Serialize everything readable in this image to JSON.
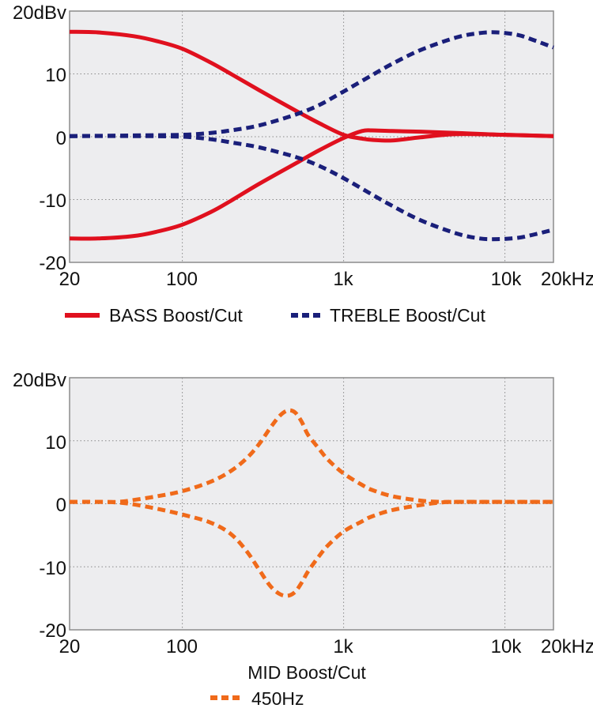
{
  "chart_data": [
    {
      "type": "line",
      "title": "",
      "xlabel": "",
      "ylabel": "dBv",
      "xscale": "log",
      "xlim": [
        20,
        20000
      ],
      "ylim": [
        -20,
        20
      ],
      "grid": true,
      "x_tick_labels": [
        "20",
        "100",
        "1k",
        "10k",
        "20kHz"
      ],
      "x_tick_values": [
        20,
        100,
        1000,
        10000,
        20000
      ],
      "y_tick_labels": [
        "20dBv",
        "10",
        "0",
        "-10",
        "-20"
      ],
      "y_tick_values": [
        20,
        10,
        0,
        -10,
        -20
      ],
      "legend_position": "bottom",
      "legend": [
        {
          "label": "BASS Boost/Cut",
          "color": "#e0101e",
          "style": "solid"
        },
        {
          "label": "TREBLE Boost/Cut",
          "color": "#1a1f7a",
          "style": "dashed"
        }
      ],
      "series": [
        {
          "name": "BASS Boost",
          "color": "#e0101e",
          "style": "solid",
          "x": [
            20,
            30,
            50,
            70,
            100,
            150,
            200,
            300,
            500,
            700,
            1000,
            1300,
            1500,
            2000,
            3000,
            5000,
            10000,
            20000
          ],
          "y": [
            16.7,
            16.6,
            16.0,
            15.2,
            14.0,
            11.8,
            10.0,
            7.4,
            4.2,
            2.2,
            0.3,
            -0.3,
            -0.5,
            -0.6,
            -0.1,
            0.4,
            0.3,
            0.1
          ]
        },
        {
          "name": "BASS Cut",
          "color": "#e0101e",
          "style": "solid",
          "x": [
            20,
            30,
            50,
            70,
            100,
            150,
            200,
            300,
            500,
            700,
            1000,
            1300,
            1500,
            2000,
            3000,
            5000,
            10000,
            20000
          ],
          "y": [
            -16.2,
            -16.2,
            -15.8,
            -15.1,
            -14.0,
            -12.0,
            -10.2,
            -7.5,
            -4.3,
            -2.2,
            -0.2,
            0.9,
            1.0,
            0.9,
            0.8,
            0.6,
            0.3,
            0.1
          ]
        },
        {
          "name": "TREBLE Boost",
          "color": "#1a1f7a",
          "style": "dashed",
          "x": [
            20,
            50,
            100,
            150,
            200,
            300,
            500,
            700,
            1000,
            1500,
            2000,
            3000,
            5000,
            7000,
            9000,
            12000,
            15000,
            20000
          ],
          "y": [
            0.1,
            0.2,
            0.3,
            0.6,
            1.0,
            1.8,
            3.5,
            5.0,
            7.2,
            9.8,
            11.6,
            13.8,
            15.8,
            16.5,
            16.6,
            16.2,
            15.4,
            14.2
          ]
        },
        {
          "name": "TREBLE Cut",
          "color": "#1a1f7a",
          "style": "dashed",
          "x": [
            20,
            50,
            100,
            150,
            200,
            300,
            500,
            700,
            1000,
            1500,
            2000,
            3000,
            5000,
            7000,
            9000,
            12000,
            15000,
            20000
          ],
          "y": [
            0.1,
            0.1,
            0.0,
            -0.4,
            -0.9,
            -1.7,
            -3.2,
            -4.6,
            -6.6,
            -9.2,
            -11.0,
            -13.3,
            -15.4,
            -16.2,
            -16.3,
            -16.1,
            -15.6,
            -14.8
          ]
        }
      ]
    },
    {
      "type": "line",
      "title": "MID Boost/Cut",
      "xlabel": "",
      "ylabel": "dBv",
      "xscale": "log",
      "xlim": [
        20,
        20000
      ],
      "ylim": [
        -20,
        20
      ],
      "grid": true,
      "x_tick_labels": [
        "20",
        "100",
        "1k",
        "10k",
        "20kHz"
      ],
      "x_tick_values": [
        20,
        100,
        1000,
        10000,
        20000
      ],
      "y_tick_labels": [
        "20dBv",
        "10",
        "0",
        "-10",
        "-20"
      ],
      "y_tick_values": [
        20,
        10,
        0,
        -10,
        -20
      ],
      "legend_position": "bottom",
      "legend": [
        {
          "label": "450Hz",
          "color": "#f06a1a",
          "style": "dashed"
        }
      ],
      "series": [
        {
          "name": "MID 450Hz Boost",
          "color": "#f06a1a",
          "style": "dashed",
          "x": [
            20,
            30,
            40,
            50,
            70,
            100,
            150,
            200,
            250,
            300,
            350,
            400,
            450,
            500,
            550,
            600,
            700,
            800,
            1000,
            1300,
            1500,
            2000,
            3000,
            4000,
            5000,
            10000,
            20000
          ],
          "y": [
            0.3,
            0.3,
            0.3,
            0.6,
            1.2,
            2.0,
            3.5,
            5.2,
            7.2,
            9.5,
            12.0,
            13.9,
            14.8,
            14.5,
            13.0,
            11.0,
            8.8,
            7.0,
            4.8,
            3.0,
            2.2,
            1.2,
            0.5,
            0.3,
            0.3,
            0.3,
            0.3
          ]
        },
        {
          "name": "MID 450Hz Cut",
          "color": "#f06a1a",
          "style": "dashed",
          "x": [
            20,
            30,
            40,
            50,
            70,
            100,
            150,
            200,
            250,
            300,
            350,
            400,
            450,
            500,
            550,
            600,
            700,
            800,
            1000,
            1300,
            1500,
            2000,
            3000,
            4000,
            5000,
            10000,
            20000
          ],
          "y": [
            0.3,
            0.3,
            0.2,
            -0.1,
            -0.8,
            -1.7,
            -3.0,
            -4.8,
            -7.5,
            -10.5,
            -13.0,
            -14.3,
            -14.6,
            -14.0,
            -12.5,
            -10.8,
            -8.4,
            -6.6,
            -4.4,
            -2.8,
            -2.0,
            -1.0,
            -0.2,
            0.2,
            0.3,
            0.3,
            0.3
          ]
        }
      ]
    }
  ],
  "top_chart": {
    "y_labels": [
      "20dBv",
      "10",
      "0",
      "-10",
      "-20"
    ],
    "x_labels": [
      "20",
      "100",
      "1k",
      "10k",
      "20kHz"
    ],
    "legend": {
      "bass_label": "BASS Boost/Cut",
      "treble_label": "TREBLE Boost/Cut"
    }
  },
  "bottom_chart": {
    "y_labels": [
      "20dBv",
      "10",
      "0",
      "-10",
      "-20"
    ],
    "x_labels": [
      "20",
      "100",
      "1k",
      "10k",
      "20kHz"
    ],
    "title": "MID Boost/Cut",
    "legend": {
      "mid_label": "450Hz"
    }
  },
  "colors": {
    "bass": "#e0101e",
    "treble": "#1a1f7a",
    "mid": "#f06a1a",
    "plot_bg": "#ededef",
    "grid": "#8a8a8a",
    "frame": "#8c8c8c"
  }
}
